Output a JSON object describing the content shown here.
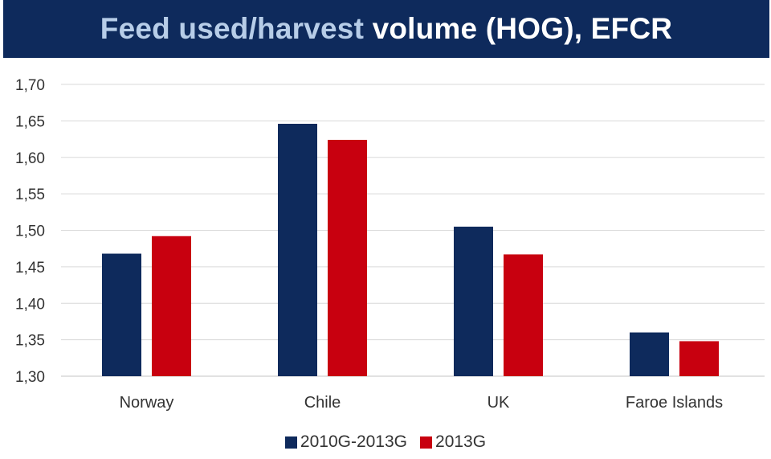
{
  "title": {
    "part1": "Feed used/harvest",
    "part2": " volume (HOG), EFCR"
  },
  "colors": {
    "title_bg": "#0e2a5c",
    "title_highlight": "#b7cde8",
    "series_1": "#0e2a5c",
    "series_2": "#c8000f",
    "grid": "#d9d9d9"
  },
  "chart_data": {
    "type": "bar",
    "title": "Feed used/harvest volume (HOG), EFCR",
    "categories": [
      "Norway",
      "Chile",
      "UK",
      "Faroe Islands"
    ],
    "series": [
      {
        "name": "2010G-2013G",
        "values": [
          1.468,
          1.646,
          1.505,
          1.36
        ]
      },
      {
        "name": "2013G",
        "values": [
          1.492,
          1.624,
          1.467,
          1.348
        ]
      }
    ],
    "ylim": [
      1.3,
      1.7
    ],
    "yticks": [
      "1,30",
      "1,35",
      "1,40",
      "1,45",
      "1,50",
      "1,55",
      "1,60",
      "1,65",
      "1,70"
    ],
    "grid": true,
    "legend_position": "bottom"
  }
}
